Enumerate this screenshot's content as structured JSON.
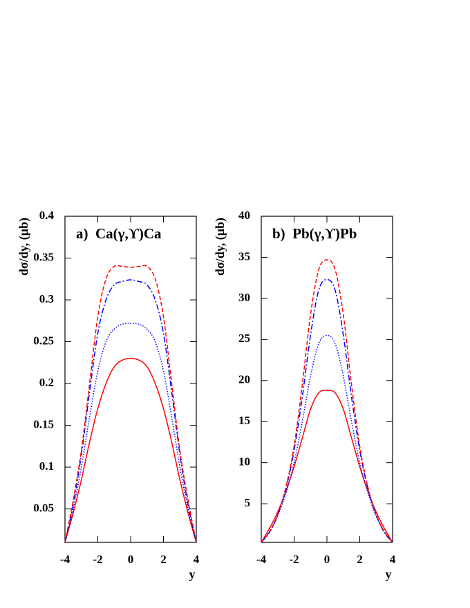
{
  "chart_data": [
    {
      "type": "line",
      "title": "a)  Ca(γ,ϒ)Ca",
      "x_label": "y",
      "y_label": "dσ/dy, (μb)",
      "x": [
        -4,
        -3.5,
        -3,
        -2.5,
        -2,
        -1.5,
        -1,
        -0.5,
        0,
        0.5,
        1,
        1.5,
        2,
        2.5,
        3,
        3.5,
        4
      ],
      "xlim": [
        -4,
        4
      ],
      "xticks": [
        -4,
        -2,
        0,
        2,
        4
      ],
      "ylim": [
        0.01,
        0.4
      ],
      "yticks": [
        0.05,
        0.1,
        0.15,
        0.2,
        0.25,
        0.3,
        0.35,
        0.4
      ],
      "series": [
        {
          "color": "#ff0000",
          "dash": "solid",
          "values": [
            0.01,
            0.045,
            0.085,
            0.13,
            0.17,
            0.2,
            0.22,
            0.228,
            0.23,
            0.228,
            0.22,
            0.2,
            0.17,
            0.13,
            0.085,
            0.045,
            0.01
          ]
        },
        {
          "color": "#0000ff",
          "dash": "dotted",
          "values": [
            0.01,
            0.05,
            0.1,
            0.16,
            0.215,
            0.25,
            0.265,
            0.271,
            0.272,
            0.271,
            0.265,
            0.25,
            0.215,
            0.16,
            0.1,
            0.05,
            0.01
          ]
        },
        {
          "color": "#0000ff",
          "dash": "dashdot",
          "values": [
            0.01,
            0.055,
            0.115,
            0.19,
            0.26,
            0.3,
            0.318,
            0.322,
            0.324,
            0.322,
            0.318,
            0.3,
            0.26,
            0.19,
            0.115,
            0.055,
            0.01
          ]
        },
        {
          "color": "#ff0000",
          "dash": "dashed",
          "values": [
            0.01,
            0.06,
            0.12,
            0.2,
            0.28,
            0.325,
            0.34,
            0.34,
            0.339,
            0.34,
            0.34,
            0.325,
            0.28,
            0.2,
            0.12,
            0.06,
            0.01
          ]
        }
      ]
    },
    {
      "type": "line",
      "title": "b)  Pb(γ,ϒ)Pb",
      "x_label": "y",
      "y_label": "dσ/dy, (μb)",
      "x": [
        -4,
        -3.5,
        -3,
        -2.5,
        -2,
        -1.5,
        -1,
        -0.5,
        0,
        0.5,
        1,
        1.5,
        2,
        2.5,
        3,
        3.5,
        4
      ],
      "xlim": [
        -4,
        4
      ],
      "xticks": [
        -4,
        -2,
        0,
        2,
        4
      ],
      "ylim": [
        0.3,
        40
      ],
      "yticks": [
        5,
        10,
        15,
        20,
        25,
        30,
        35,
        40
      ],
      "series": [
        {
          "color": "#ff0000",
          "dash": "solid",
          "values": [
            0.3,
            2,
            4,
            6.5,
            9.5,
            13,
            16.5,
            18.5,
            18.8,
            18.5,
            16.5,
            13,
            9.5,
            6.5,
            4,
            2,
            0.3
          ]
        },
        {
          "color": "#0000ff",
          "dash": "dotted",
          "values": [
            0.3,
            1.6,
            3.5,
            6.3,
            10,
            15,
            20.5,
            24.5,
            25.5,
            24.5,
            20.5,
            15,
            10,
            6.3,
            3.5,
            1.6,
            0.3
          ]
        },
        {
          "color": "#0000ff",
          "dash": "dashdot",
          "values": [
            0.3,
            1.5,
            3.6,
            6.8,
            11.5,
            18,
            25.5,
            31,
            32.3,
            31,
            25.5,
            18,
            11.5,
            6.8,
            3.6,
            1.5,
            0.3
          ]
        },
        {
          "color": "#ff0000",
          "dash": "dashed",
          "values": [
            0.3,
            1.6,
            3.7,
            7,
            12,
            19.5,
            28,
            33.5,
            34.7,
            33.5,
            28,
            19.5,
            12,
            7,
            3.7,
            1.6,
            0.3
          ]
        }
      ]
    }
  ]
}
